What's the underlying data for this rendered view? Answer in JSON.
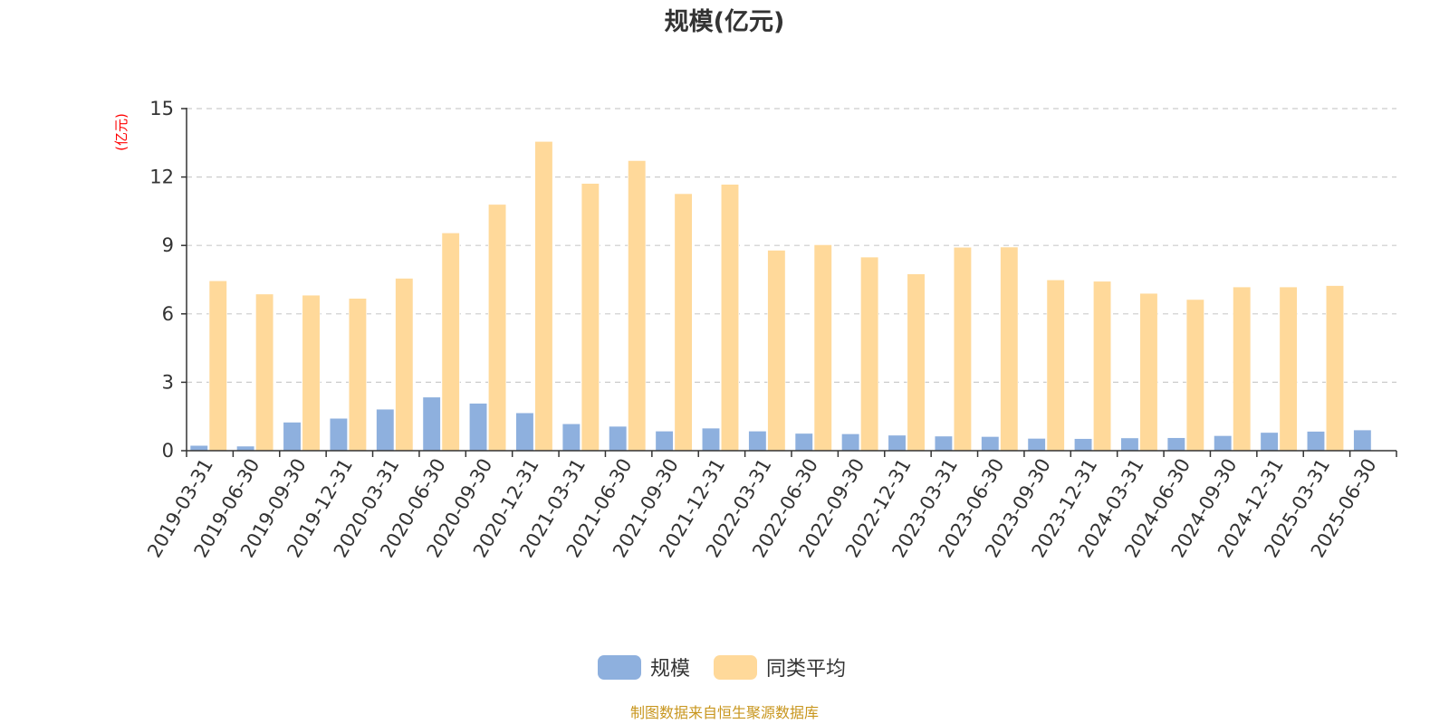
{
  "chart_data": {
    "type": "bar",
    "title": "规模(亿元)",
    "ylabel": "(亿元)",
    "xlabel": "",
    "ylim": [
      0,
      15
    ],
    "yticks": [
      0,
      3,
      6,
      9,
      12,
      15
    ],
    "grid": true,
    "legend_position": "bottom-center",
    "categories": [
      "2019-03-31",
      "2019-06-30",
      "2019-09-30",
      "2019-12-31",
      "2020-03-31",
      "2020-06-30",
      "2020-09-30",
      "2020-12-31",
      "2021-03-31",
      "2021-06-30",
      "2021-09-30",
      "2021-12-31",
      "2022-03-31",
      "2022-06-30",
      "2022-09-30",
      "2022-12-31",
      "2023-03-31",
      "2023-06-30",
      "2023-09-30",
      "2023-12-31",
      "2024-03-31",
      "2024-06-30",
      "2024-09-30",
      "2024-12-31",
      "2025-03-31",
      "2025-06-30"
    ],
    "series": [
      {
        "name": "规模",
        "color": "#8eb0de",
        "values": [
          0.23,
          0.2,
          1.25,
          1.42,
          1.82,
          2.35,
          2.08,
          1.66,
          1.18,
          1.07,
          0.86,
          0.99,
          0.86,
          0.76,
          0.74,
          0.68,
          0.64,
          0.62,
          0.54,
          0.53,
          0.56,
          0.57,
          0.66,
          0.8,
          0.85,
          0.91
        ]
      },
      {
        "name": "同类平均",
        "color": "#ffd99a",
        "values": [
          7.45,
          6.87,
          6.82,
          6.68,
          7.56,
          9.55,
          10.8,
          13.56,
          11.72,
          12.72,
          11.27,
          11.68,
          8.79,
          9.03,
          8.49,
          7.75,
          8.92,
          8.93,
          7.49,
          7.43,
          6.9,
          6.63,
          7.18,
          7.18,
          7.24,
          null
        ]
      }
    ],
    "source": "制图数据来自恒生聚源数据库",
    "colors": {
      "axis": "#333333",
      "grid": "#cccccc",
      "ylabel": "#ff0000",
      "source": "#c8961e",
      "text": "#333333"
    }
  }
}
